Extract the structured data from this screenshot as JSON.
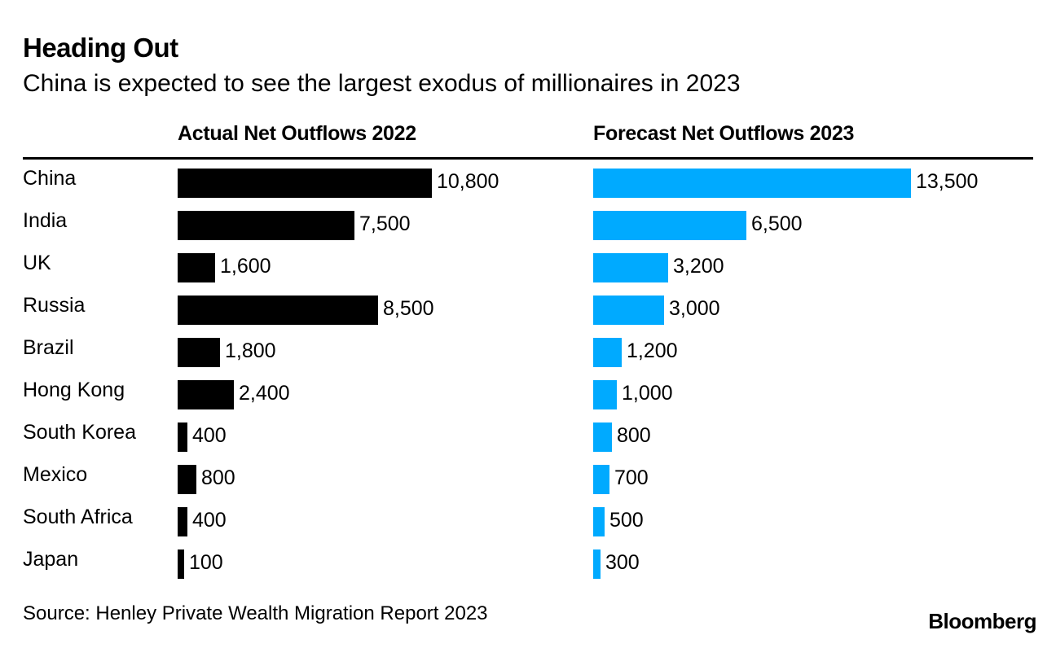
{
  "chart_data": {
    "type": "bar",
    "orientation": "horizontal",
    "title": "Heading Out",
    "subtitle": "China is expected to see the largest exodus of millionaires in 2023",
    "categories": [
      "China",
      "India",
      "UK",
      "Russia",
      "Brazil",
      "Hong Kong",
      "South Korea",
      "Mexico",
      "South Africa",
      "Japan"
    ],
    "series": [
      {
        "name": "Actual Net Outflows 2022",
        "color": "#000000",
        "values": [
          10800,
          7500,
          1600,
          8500,
          1800,
          2400,
          400,
          800,
          400,
          100
        ],
        "labels": [
          "10,800",
          "7,500",
          "1,600",
          "8,500",
          "1,800",
          "2,400",
          "400",
          "800",
          "400",
          "100"
        ]
      },
      {
        "name": "Forecast Net Outflows 2023",
        "color": "#00aaff",
        "values": [
          13500,
          6500,
          3200,
          3000,
          1200,
          1000,
          800,
          700,
          500,
          300
        ],
        "labels": [
          "13,500",
          "6,500",
          "3,200",
          "3,000",
          "1,200",
          "1,000",
          "800",
          "700",
          "500",
          "300"
        ]
      }
    ],
    "source": "Source: Henley Private Wealth Migration Report 2023",
    "brand": "Bloomberg"
  }
}
